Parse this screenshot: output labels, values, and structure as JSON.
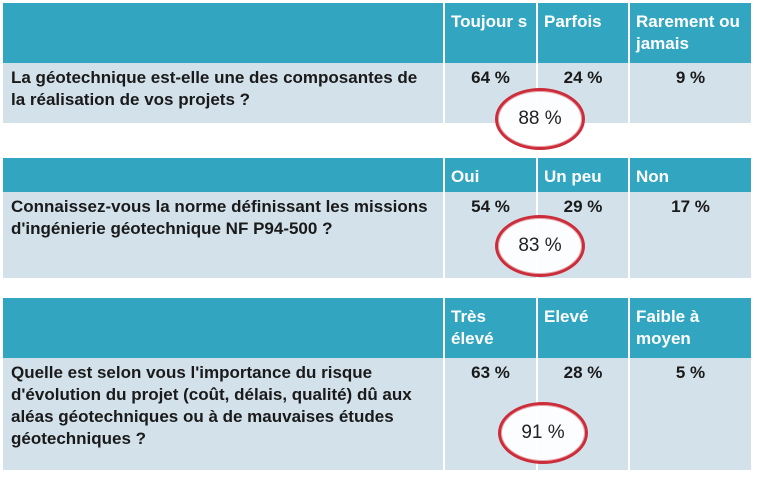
{
  "tables": [
    {
      "headers": [
        "Toujour s",
        "Parfois",
        "Rarement ou jamais"
      ],
      "question": "La géotechnique est-elle une des composantes de la réalisation de vos projets ?",
      "values": [
        "64 %",
        "24 %",
        "9 %"
      ],
      "highlight": "88 %"
    },
    {
      "headers": [
        "Oui",
        "Un peu",
        "Non"
      ],
      "question": "Connaissez-vous la norme définissant les  missions d'ingénierie géotechnique NF P94-500 ?",
      "values": [
        "54 %",
        "29 %",
        "17 %"
      ],
      "highlight": "83 %"
    },
    {
      "headers": [
        "Très élevé",
        "Elevé",
        "Faible à moyen"
      ],
      "question": "Quelle est selon vous l'importance du risque d'évolution du projet (coût, délais, qualité) dû aux aléas géotechniques ou à de mauvaises études géotechniques ?",
      "values": [
        "63 %",
        "28 %",
        "5 %"
      ],
      "highlight": "91 %"
    }
  ],
  "colors": {
    "header_bg": "#32a6c1",
    "row_bg": "#d2e1ea",
    "ellipse_border": "#cc2d3a"
  }
}
